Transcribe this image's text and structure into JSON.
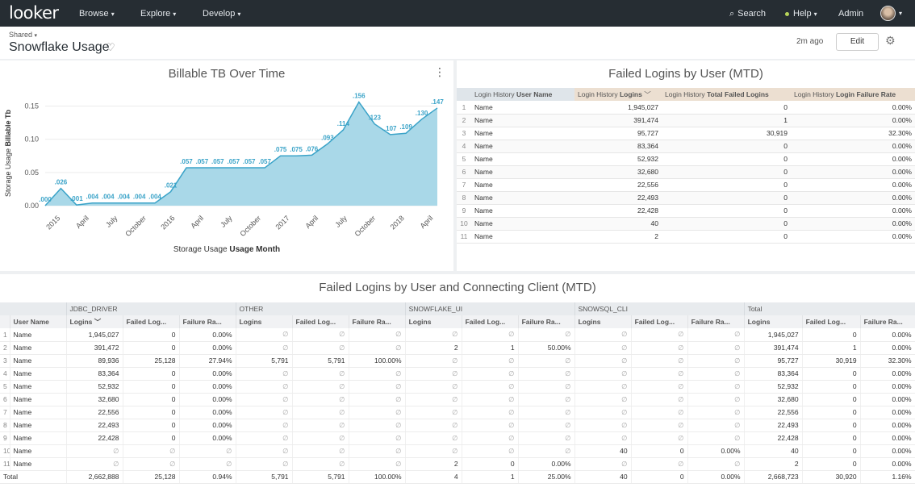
{
  "nav": {
    "logo": "looker",
    "browse": "Browse",
    "explore": "Explore",
    "develop": "Develop",
    "search": "Search",
    "help": "Help",
    "admin": "Admin"
  },
  "header": {
    "breadcrumb": "Shared",
    "title": "Snowflake Usage",
    "updated": "2m ago",
    "edit_label": "Edit"
  },
  "chart1": {
    "title": "Billable TB Over Time",
    "ylabel_prefix": "Storage Usage ",
    "ylabel_bold": "Billable Tb",
    "xlabel_prefix": "Storage Usage ",
    "xlabel_bold": "Usage Month"
  },
  "chart_data": {
    "type": "area",
    "title": "Billable TB Over Time",
    "ylim": [
      0,
      0.17
    ],
    "yticks": [
      "0.00",
      "0.05",
      "0.10",
      "0.15"
    ],
    "xticks": [
      "2015",
      "April",
      "July",
      "October",
      "2016",
      "April",
      "July",
      "October",
      "2017",
      "April",
      "July",
      "October",
      "2018",
      "April"
    ],
    "values": [
      0.0,
      0.026,
      0.001,
      0.004,
      0.004,
      0.004,
      0.004,
      0.004,
      0.021,
      0.057,
      0.057,
      0.057,
      0.057,
      0.057,
      0.057,
      0.075,
      0.075,
      0.076,
      0.093,
      0.114,
      0.156,
      0.123,
      0.107,
      0.109,
      0.13,
      0.147
    ],
    "labels": [
      ".000",
      ".026",
      ".001",
      ".004",
      ".004",
      ".004",
      ".004",
      ".004",
      ".021",
      ".057",
      ".057",
      ".057",
      ".057",
      ".057",
      ".057",
      ".075",
      ".075",
      ".076",
      ".093",
      ".114",
      ".156",
      ".123",
      ".107",
      ".109",
      ".130",
      ".147"
    ],
    "grid": true,
    "color": "#a9d8e8"
  },
  "table1": {
    "title": "Failed Logins by User (MTD)",
    "headers": [
      {
        "pre": "Login History ",
        "bold": "User Name"
      },
      {
        "pre": "Login History ",
        "bold": "Logins",
        "sort": "﹀"
      },
      {
        "pre": "Login History ",
        "bold": "Total Failed Logins"
      },
      {
        "pre": "Login History ",
        "bold": "Login Failure Rate"
      }
    ],
    "rows": [
      [
        "1",
        "Name",
        "1,945,027",
        "0",
        "0.00%"
      ],
      [
        "2",
        "Name",
        "391,474",
        "1",
        "0.00%"
      ],
      [
        "3",
        "Name",
        "95,727",
        "30,919",
        "32.30%"
      ],
      [
        "4",
        "Name",
        "83,364",
        "0",
        "0.00%"
      ],
      [
        "5",
        "Name",
        "52,932",
        "0",
        "0.00%"
      ],
      [
        "6",
        "Name",
        "32,680",
        "0",
        "0.00%"
      ],
      [
        "7",
        "Name",
        "22,556",
        "0",
        "0.00%"
      ],
      [
        "8",
        "Name",
        "22,493",
        "0",
        "0.00%"
      ],
      [
        "9",
        "Name",
        "22,428",
        "0",
        "0.00%"
      ],
      [
        "10",
        "Name",
        "40",
        "0",
        "0.00%"
      ],
      [
        "11",
        "Name",
        "2",
        "0",
        "0.00%"
      ]
    ]
  },
  "table2": {
    "title": "Failed Logins by User and Connecting Client (MTD)",
    "pivots": [
      "JDBC_DRIVER",
      "OTHER",
      "SNOWFLAKE_UI",
      "SNOWSQL_CLI",
      "Total"
    ],
    "user_header": "User Name",
    "measure_headers": [
      "Logins",
      "Failed Log...",
      "Failure Ra..."
    ],
    "logins_sort": "﹀",
    "null_symbol": "∅",
    "rows": [
      [
        "1",
        "Name",
        "1,945,027",
        "0",
        "0.00%",
        "∅",
        "∅",
        "∅",
        "∅",
        "∅",
        "∅",
        "∅",
        "∅",
        "∅",
        "1,945,027",
        "0",
        "0.00%"
      ],
      [
        "2",
        "Name",
        "391,472",
        "0",
        "0.00%",
        "∅",
        "∅",
        "∅",
        "2",
        "1",
        "50.00%",
        "∅",
        "∅",
        "∅",
        "391,474",
        "1",
        "0.00%"
      ],
      [
        "3",
        "Name",
        "89,936",
        "25,128",
        "27.94%",
        "5,791",
        "5,791",
        "100.00%",
        "∅",
        "∅",
        "∅",
        "∅",
        "∅",
        "∅",
        "95,727",
        "30,919",
        "32.30%"
      ],
      [
        "4",
        "Name",
        "83,364",
        "0",
        "0.00%",
        "∅",
        "∅",
        "∅",
        "∅",
        "∅",
        "∅",
        "∅",
        "∅",
        "∅",
        "83,364",
        "0",
        "0.00%"
      ],
      [
        "5",
        "Name",
        "52,932",
        "0",
        "0.00%",
        "∅",
        "∅",
        "∅",
        "∅",
        "∅",
        "∅",
        "∅",
        "∅",
        "∅",
        "52,932",
        "0",
        "0.00%"
      ],
      [
        "6",
        "Name",
        "32,680",
        "0",
        "0.00%",
        "∅",
        "∅",
        "∅",
        "∅",
        "∅",
        "∅",
        "∅",
        "∅",
        "∅",
        "32,680",
        "0",
        "0.00%"
      ],
      [
        "7",
        "Name",
        "22,556",
        "0",
        "0.00%",
        "∅",
        "∅",
        "∅",
        "∅",
        "∅",
        "∅",
        "∅",
        "∅",
        "∅",
        "22,556",
        "0",
        "0.00%"
      ],
      [
        "8",
        "Name",
        "22,493",
        "0",
        "0.00%",
        "∅",
        "∅",
        "∅",
        "∅",
        "∅",
        "∅",
        "∅",
        "∅",
        "∅",
        "22,493",
        "0",
        "0.00%"
      ],
      [
        "9",
        "Name",
        "22,428",
        "0",
        "0.00%",
        "∅",
        "∅",
        "∅",
        "∅",
        "∅",
        "∅",
        "∅",
        "∅",
        "∅",
        "22,428",
        "0",
        "0.00%"
      ],
      [
        "10",
        "Name",
        "∅",
        "∅",
        "∅",
        "∅",
        "∅",
        "∅",
        "∅",
        "∅",
        "∅",
        "40",
        "0",
        "0.00%",
        "40",
        "0",
        "0.00%"
      ],
      [
        "11",
        "Name",
        "∅",
        "∅",
        "∅",
        "∅",
        "∅",
        "∅",
        "2",
        "0",
        "0.00%",
        "∅",
        "∅",
        "∅",
        "2",
        "0",
        "0.00%"
      ]
    ],
    "total_row": [
      "Total",
      "2,662,888",
      "25,128",
      "0.94%",
      "5,791",
      "5,791",
      "100.00%",
      "4",
      "1",
      "25.00%",
      "40",
      "0",
      "0.00%",
      "2,668,723",
      "30,920",
      "1.16%"
    ]
  }
}
